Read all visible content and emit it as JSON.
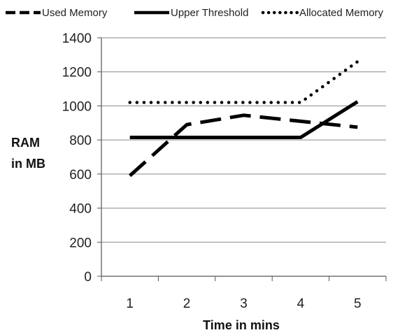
{
  "chart_data": {
    "type": "line",
    "title": "",
    "xlabel": "Time in mins",
    "ylabel_lines": [
      "RAM",
      "in MB"
    ],
    "x": [
      1,
      2,
      3,
      4,
      5
    ],
    "ylim": [
      0,
      1400
    ],
    "y_ticks": [
      0,
      200,
      400,
      600,
      800,
      1000,
      1200,
      1400
    ],
    "grid": true,
    "legend_position": "top",
    "series": [
      {
        "name": "Used Memory",
        "style": "long-dash",
        "color": "#000000",
        "values": [
          590,
          890,
          945,
          910,
          875
        ]
      },
      {
        "name": "Upper Threshold",
        "style": "solid",
        "color": "#000000",
        "values": [
          815,
          815,
          815,
          815,
          1025
        ]
      },
      {
        "name": "Allocated Memory",
        "style": "dotted",
        "color": "#000000",
        "values": [
          1020,
          1020,
          1020,
          1020,
          1260
        ]
      }
    ]
  }
}
